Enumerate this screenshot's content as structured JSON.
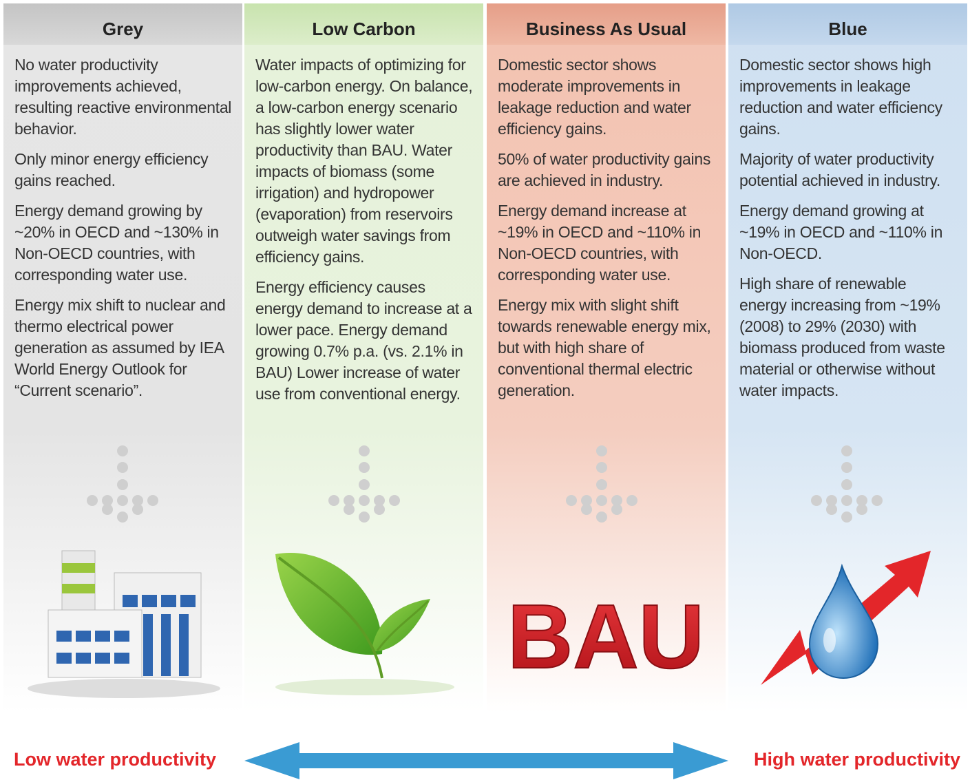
{
  "columns": [
    {
      "title": "Grey",
      "paragraphs": [
        "No water productivity improvements achieved, resulting reactive environmental behavior.",
        "Only minor energy efficiency gains reached.",
        "Energy demand growing by ~20% in OECD and ~130% in Non-OECD countries, with corresponding water use.",
        "Energy mix shift to nuclear and thermo electrical power generation as assumed by IEA World Energy Outlook for “Current scenario”."
      ]
    },
    {
      "title": "Low Carbon",
      "paragraphs": [
        "Water impacts of optimizing for low-carbon energy.  On balance, a low-carbon energy scenario has slightly lower water productivity than BAU.  Water impacts of biomass (some irrigation) and hydropower (evaporation) from reservoirs outweigh water savings from efficiency gains.",
        "Energy efficiency causes energy demand to increase at a lower pace. Energy demand growing 0.7% p.a. (vs. 2.1% in BAU) Lower increase of water use from conventional energy."
      ]
    },
    {
      "title": "Business As Usual",
      "paragraphs": [
        "Domestic sector shows moderate improvements in leakage reduction and water efficiency gains.",
        "50% of water productivity gains are achieved in industry.",
        "Energy demand increase at ~19% in OECD and ~110% in Non-OECD countries, with corresponding water use.",
        "Energy mix with slight shift towards renewable energy mix, but with high share of conventional thermal electric generation."
      ],
      "icon_text": "BAU"
    },
    {
      "title": "Blue",
      "paragraphs": [
        "Domestic sector shows high improvements in leakage reduction and water efficiency gains.",
        "Majority of water productivity potential achieved in industry.",
        "Energy demand growing at ~19% in OECD and ~110% in Non-OECD.",
        "High share of renewable energy increasing from ~19% (2008) to 29% (2030) with biomass produced from waste material or otherwise without water impacts."
      ]
    }
  ],
  "scale": {
    "left_label": "Low water productivity",
    "right_label": "High water productivity"
  }
}
